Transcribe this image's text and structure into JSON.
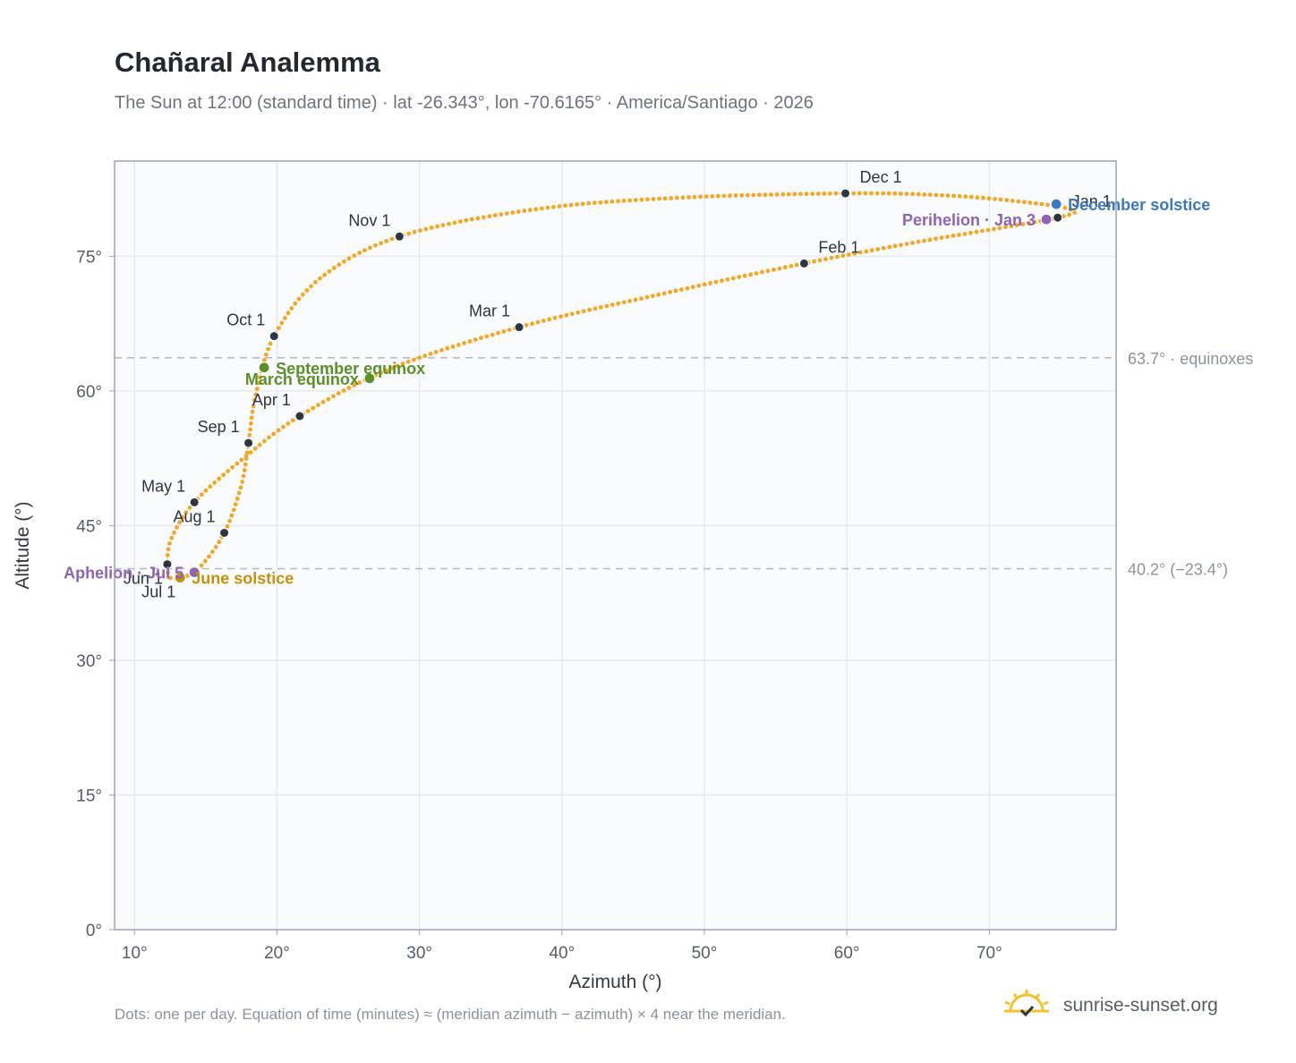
{
  "title": "Chañaral Analemma",
  "subtitle": "The Sun at 12:00 (standard time) · lat -26.343°, lon -70.6165° · America/Santiago · 2026",
  "footnote": "Dots: one per day. Equation of time (minutes) ≈ (meridian azimuth − azimuth) × 4 near the meridian.",
  "brand": {
    "name": "sunrise-sunset.org",
    "icon": "sun-logo-icon"
  },
  "colors": {
    "path": "#f5a623",
    "month": "#2d3540",
    "equinox": "#5a8f29",
    "june_solstice": "#c8900f",
    "december_solstice": "#3c78c0",
    "apsis": "#8e63b5",
    "plot_bg": "#f9fbfd",
    "grid": "#e6eaef",
    "frame": "#9aa4b2"
  },
  "chart_data": {
    "type": "scatter",
    "xlabel": "Azimuth (°)",
    "ylabel": "Altitude (°)",
    "xlim": [
      8.6,
      78.9
    ],
    "ylim": [
      0,
      85.6
    ],
    "xticks": [
      10,
      20,
      30,
      40,
      50,
      60,
      70
    ],
    "yticks": [
      0,
      15,
      30,
      45,
      60,
      75
    ],
    "xtick_labels": [
      "10°",
      "20°",
      "30°",
      "40°",
      "50°",
      "60°",
      "70°"
    ],
    "ytick_labels": [
      "0°",
      "15°",
      "30°",
      "45°",
      "60°",
      "75°"
    ],
    "grid": true,
    "reference_lines": [
      {
        "y": 63.7,
        "label": "63.7° · equinoxes"
      },
      {
        "y": 40.2,
        "label": "40.2° (−23.4°)"
      }
    ],
    "month_points": [
      {
        "label": "Jan 1",
        "x": 74.8,
        "y": 79.3,
        "anchor": "right"
      },
      {
        "label": "Feb 1",
        "x": 57.0,
        "y": 74.2,
        "anchor": "right"
      },
      {
        "label": "Mar 1",
        "x": 37.0,
        "y": 67.1,
        "anchor": "left"
      },
      {
        "label": "Apr 1",
        "x": 21.6,
        "y": 57.2,
        "anchor": "left"
      },
      {
        "label": "May 1",
        "x": 14.2,
        "y": 47.6,
        "anchor": "left"
      },
      {
        "label": "Jun 1",
        "x": 12.3,
        "y": 40.7,
        "anchor": "below-left"
      },
      {
        "label": "Jul 1",
        "x": 13.2,
        "y": 39.2,
        "anchor": "below-left"
      },
      {
        "label": "Aug 1",
        "x": 16.3,
        "y": 44.2,
        "anchor": "left"
      },
      {
        "label": "Sep 1",
        "x": 18.0,
        "y": 54.2,
        "anchor": "left"
      },
      {
        "label": "Oct 1",
        "x": 19.8,
        "y": 66.1,
        "anchor": "left"
      },
      {
        "label": "Nov 1",
        "x": 28.6,
        "y": 77.2,
        "anchor": "left"
      },
      {
        "label": "Dec 1",
        "x": 59.9,
        "y": 82.0,
        "anchor": "right"
      }
    ],
    "events": [
      {
        "label": "March equinox",
        "x": 26.5,
        "y": 61.4,
        "kind": "equinox",
        "anchor": "left"
      },
      {
        "label": "September equinox",
        "x": 19.1,
        "y": 62.6,
        "kind": "equinox",
        "anchor": "right"
      },
      {
        "label": "June solstice",
        "x": 13.2,
        "y": 39.2,
        "kind": "june_solstice",
        "anchor": "right"
      },
      {
        "label": "December solstice",
        "x": 74.7,
        "y": 80.8,
        "kind": "december_solstice",
        "anchor": "right"
      },
      {
        "label": "Aphelion · Jul 5",
        "x": 14.2,
        "y": 39.8,
        "kind": "apsis",
        "anchor": "left"
      },
      {
        "label": "Perihelion · Jan 3",
        "x": 74.0,
        "y": 79.1,
        "kind": "apsis",
        "anchor": "left"
      }
    ],
    "analemma_path": [
      [
        74.8,
        79.3
      ],
      [
        65.0,
        76.6
      ],
      [
        57.0,
        74.2
      ],
      [
        47.0,
        70.8
      ],
      [
        37.0,
        67.1
      ],
      [
        28.0,
        62.5
      ],
      [
        21.6,
        57.2
      ],
      [
        17.5,
        52.3
      ],
      [
        14.2,
        47.6
      ],
      [
        12.6,
        43.6
      ],
      [
        12.3,
        40.7
      ],
      [
        12.5,
        39.2
      ],
      [
        13.2,
        39.2
      ],
      [
        14.5,
        40.2
      ],
      [
        16.3,
        44.2
      ],
      [
        17.5,
        49.5
      ],
      [
        18.0,
        54.2
      ],
      [
        18.5,
        59.5
      ],
      [
        19.8,
        66.1
      ],
      [
        23.0,
        72.5
      ],
      [
        28.6,
        77.2
      ],
      [
        38.0,
        80.2
      ],
      [
        48.0,
        81.5
      ],
      [
        59.9,
        82.0
      ],
      [
        66.5,
        81.8
      ],
      [
        71.5,
        81.2
      ],
      [
        75.5,
        80.3
      ],
      [
        74.8,
        79.3
      ]
    ]
  }
}
